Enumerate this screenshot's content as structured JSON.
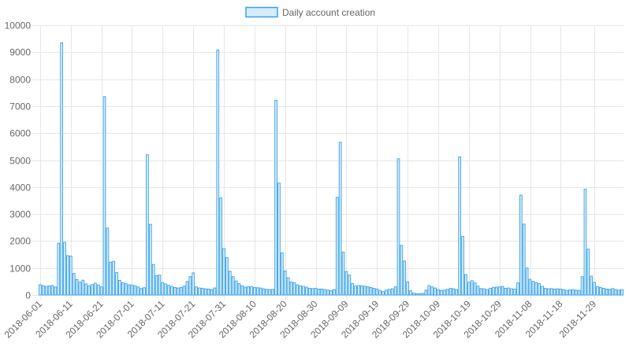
{
  "legend": {
    "label": "Daily account creation"
  },
  "colors": {
    "bar_fill": "#d6ecfa",
    "bar_stroke": "#36a2eb",
    "grid": "#e6e6e6",
    "text": "#666666"
  },
  "chart_data": {
    "type": "bar",
    "legend_position": "top-center",
    "grid": true,
    "ylim": [
      0,
      10000
    ],
    "y_ticks": [
      0,
      1000,
      2000,
      3000,
      4000,
      5000,
      6000,
      7000,
      8000,
      9000,
      10000
    ],
    "x_tick_labels": [
      "2018-06-01",
      "2018-06-11",
      "2018-06-21",
      "2018-07-01",
      "2018-07-11",
      "2018-07-21",
      "2018-07-31",
      "2018-08-10",
      "2018-08-20",
      "2018-08-30",
      "2018-09-09",
      "2018-09-19",
      "2018-09-29",
      "2018-10-09",
      "2018-10-19",
      "2018-10-29",
      "2018-11-08",
      "2018-11-18",
      "2018-11-29"
    ],
    "series": [
      {
        "name": "Daily account creation",
        "start_date": "2018-06-01",
        "values": [
          380,
          350,
          320,
          340,
          350,
          300,
          1920,
          9350,
          1950,
          1460,
          1440,
          800,
          570,
          480,
          550,
          410,
          340,
          390,
          440,
          370,
          300,
          7350,
          2480,
          1220,
          1250,
          830,
          540,
          460,
          420,
          380,
          370,
          340,
          300,
          240,
          270,
          5200,
          2620,
          1130,
          720,
          740,
          460,
          410,
          360,
          320,
          280,
          260,
          280,
          330,
          500,
          680,
          820,
          300,
          260,
          250,
          230,
          220,
          200,
          260,
          9080,
          3600,
          1720,
          1390,
          880,
          680,
          520,
          420,
          340,
          290,
          310,
          310,
          280,
          270,
          260,
          230,
          210,
          200,
          210,
          7220,
          4150,
          1560,
          890,
          640,
          480,
          460,
          380,
          340,
          320,
          290,
          250,
          240,
          250,
          220,
          220,
          200,
          180,
          160,
          200,
          3620,
          5660,
          1590,
          870,
          740,
          430,
          330,
          350,
          340,
          330,
          310,
          280,
          250,
          220,
          170,
          130,
          180,
          210,
          230,
          300,
          5050,
          1840,
          1260,
          480,
          160,
          70,
          50,
          50,
          60,
          180,
          350,
          300,
          260,
          200,
          170,
          180,
          210,
          250,
          230,
          200,
          5120,
          2170,
          760,
          470,
          530,
          450,
          330,
          240,
          230,
          200,
          250,
          280,
          290,
          300,
          320,
          250,
          260,
          230,
          220,
          450,
          3700,
          2630,
          1000,
          580,
          510,
          460,
          420,
          320,
          250,
          230,
          240,
          220,
          230,
          220,
          200,
          170,
          190,
          200,
          180,
          170,
          680,
          3920,
          1700,
          700,
          470,
          310,
          280,
          250,
          220,
          210,
          240,
          200,
          180,
          200
        ]
      }
    ]
  }
}
